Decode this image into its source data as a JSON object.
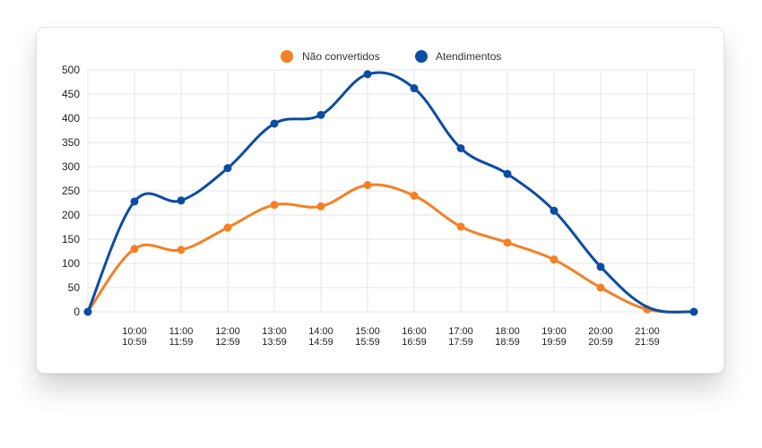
{
  "chart_data": {
    "type": "line",
    "categories": [
      [
        "",
        ""
      ],
      [
        "10:00",
        "10:59"
      ],
      [
        "11:00",
        "11:59"
      ],
      [
        "12:00",
        "12:59"
      ],
      [
        "13:00",
        "13:59"
      ],
      [
        "14:00",
        "14:59"
      ],
      [
        "15:00",
        "15:59"
      ],
      [
        "16:00",
        "16:59"
      ],
      [
        "17:00",
        "17:59"
      ],
      [
        "18:00",
        "18:59"
      ],
      [
        "19:00",
        "19:59"
      ],
      [
        "20:00",
        "20:59"
      ],
      [
        "21:00",
        "21:59"
      ],
      [
        "",
        ""
      ]
    ],
    "series": [
      {
        "name": "Não convertidos",
        "color": "#f58025",
        "values": [
          0,
          130,
          128,
          174,
          221,
          218,
          262,
          240,
          176,
          143,
          108,
          50,
          5,
          0
        ],
        "markers": [
          true,
          true,
          true,
          true,
          true,
          true,
          true,
          true,
          true,
          true,
          true,
          true,
          true,
          true
        ]
      },
      {
        "name": "Atendimentos",
        "color": "#0b4da2",
        "values": [
          0,
          228,
          230,
          297,
          389,
          407,
          491,
          462,
          338,
          285,
          209,
          93,
          10,
          0
        ],
        "markers": [
          true,
          true,
          true,
          true,
          true,
          true,
          true,
          true,
          true,
          true,
          true,
          true,
          false,
          true
        ]
      }
    ],
    "yticks": [
      0,
      50,
      100,
      150,
      200,
      250,
      300,
      350,
      400,
      450,
      500
    ],
    "ylim": [
      0,
      500
    ],
    "grid": true,
    "legend": "top-center"
  }
}
